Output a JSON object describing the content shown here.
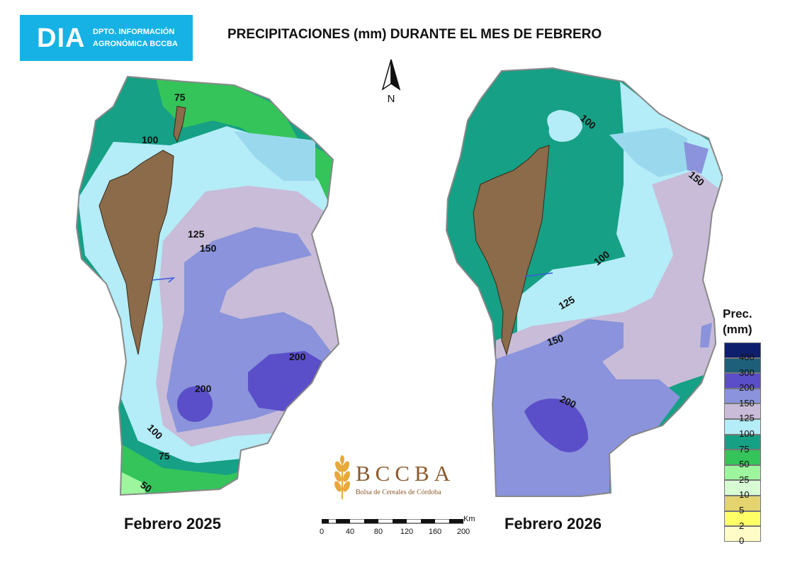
{
  "header": {
    "logo_big": "DIA",
    "logo_line1": "DPTO. INFORMACIÓN",
    "logo_line2": "AGRONÓMICA BCCBA",
    "title": "PRECIPITACIONES (mm) DURANTE EL MES DE FEBRERO"
  },
  "north_label": "N",
  "maps": [
    {
      "label": "Febrero 2025",
      "contours": [
        "75",
        "100",
        "125",
        "150",
        "200",
        "200",
        "100",
        "75",
        "50"
      ]
    },
    {
      "label": "Febrero 2026",
      "contours": [
        "100",
        "150",
        "100",
        "125",
        "150",
        "200"
      ]
    }
  ],
  "brand": {
    "name": "BCCBA",
    "sub": "Bolsa de Cereales de Córdoba"
  },
  "scale": {
    "unit": "Km",
    "ticks": [
      "0",
      "40",
      "80",
      "120",
      "160",
      "200"
    ]
  },
  "legend": {
    "title_line1": "Prec.",
    "title_line2": "(mm)",
    "classes": [
      {
        "label": "400",
        "color": "#0e1f6e"
      },
      {
        "label": "300",
        "color": "#1e5f7a"
      },
      {
        "label": "200",
        "color": "#5b4ec9"
      },
      {
        "label": "150",
        "color": "#8a93db"
      },
      {
        "label": "125",
        "color": "#c8bcd8"
      },
      {
        "label": "100",
        "color": "#b4ecf7"
      },
      {
        "label": "75",
        "color": "#16a085"
      },
      {
        "label": "50",
        "color": "#34c45a"
      },
      {
        "label": "25",
        "color": "#9df59d"
      },
      {
        "label": "10",
        "color": "#d7fcd4"
      },
      {
        "label": "5",
        "color": "#e4d46f"
      },
      {
        "label": "2",
        "color": "#ffff66"
      },
      {
        "label": "0",
        "color": "#fffcc8"
      }
    ]
  }
}
